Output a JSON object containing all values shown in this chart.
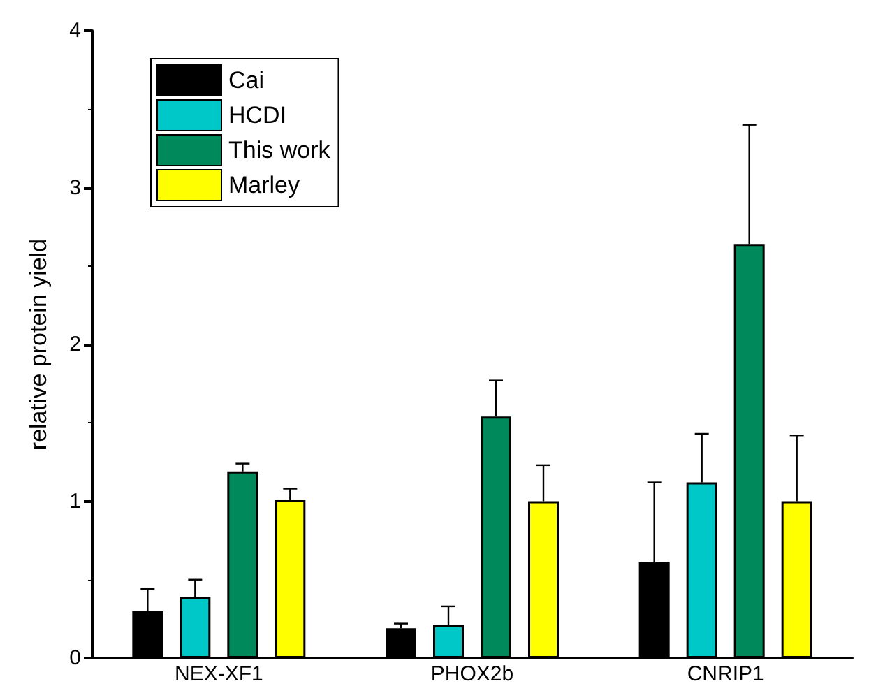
{
  "chart_data": {
    "type": "bar",
    "ylabel": "relative protein yield",
    "categories": [
      "NEX-XF1",
      "PHOX2b",
      "CNRIP1"
    ],
    "ylim": [
      0,
      4
    ],
    "yticks": [
      0,
      1,
      2,
      3,
      4
    ],
    "legend": "top left",
    "grid": false,
    "series": [
      {
        "name": "Cai",
        "color": "#000000",
        "values": [
          0.3,
          0.19,
          0.61
        ],
        "errors": [
          [
            0.3,
            0.44
          ],
          [
            0.19,
            0.22
          ],
          [
            0.61,
            1.12
          ]
        ]
      },
      {
        "name": "HCDI",
        "color": "#00c8c8",
        "values": [
          0.39,
          0.21,
          1.12
        ],
        "errors": [
          [
            0.39,
            0.5
          ],
          [
            0.21,
            0.33
          ],
          [
            1.12,
            1.43
          ]
        ]
      },
      {
        "name": "This work",
        "color": "#008a5c",
        "values": [
          1.19,
          1.54,
          2.64
        ],
        "errors": [
          [
            1.19,
            1.24
          ],
          [
            1.54,
            1.77
          ],
          [
            2.64,
            3.4
          ]
        ]
      },
      {
        "name": "Marley",
        "color": "#ffff00",
        "values": [
          1.01,
          1.0,
          1.0
        ],
        "errors": [
          [
            1.01,
            1.08
          ],
          [
            1.0,
            1.23
          ],
          [
            1.0,
            1.42
          ]
        ]
      }
    ]
  }
}
